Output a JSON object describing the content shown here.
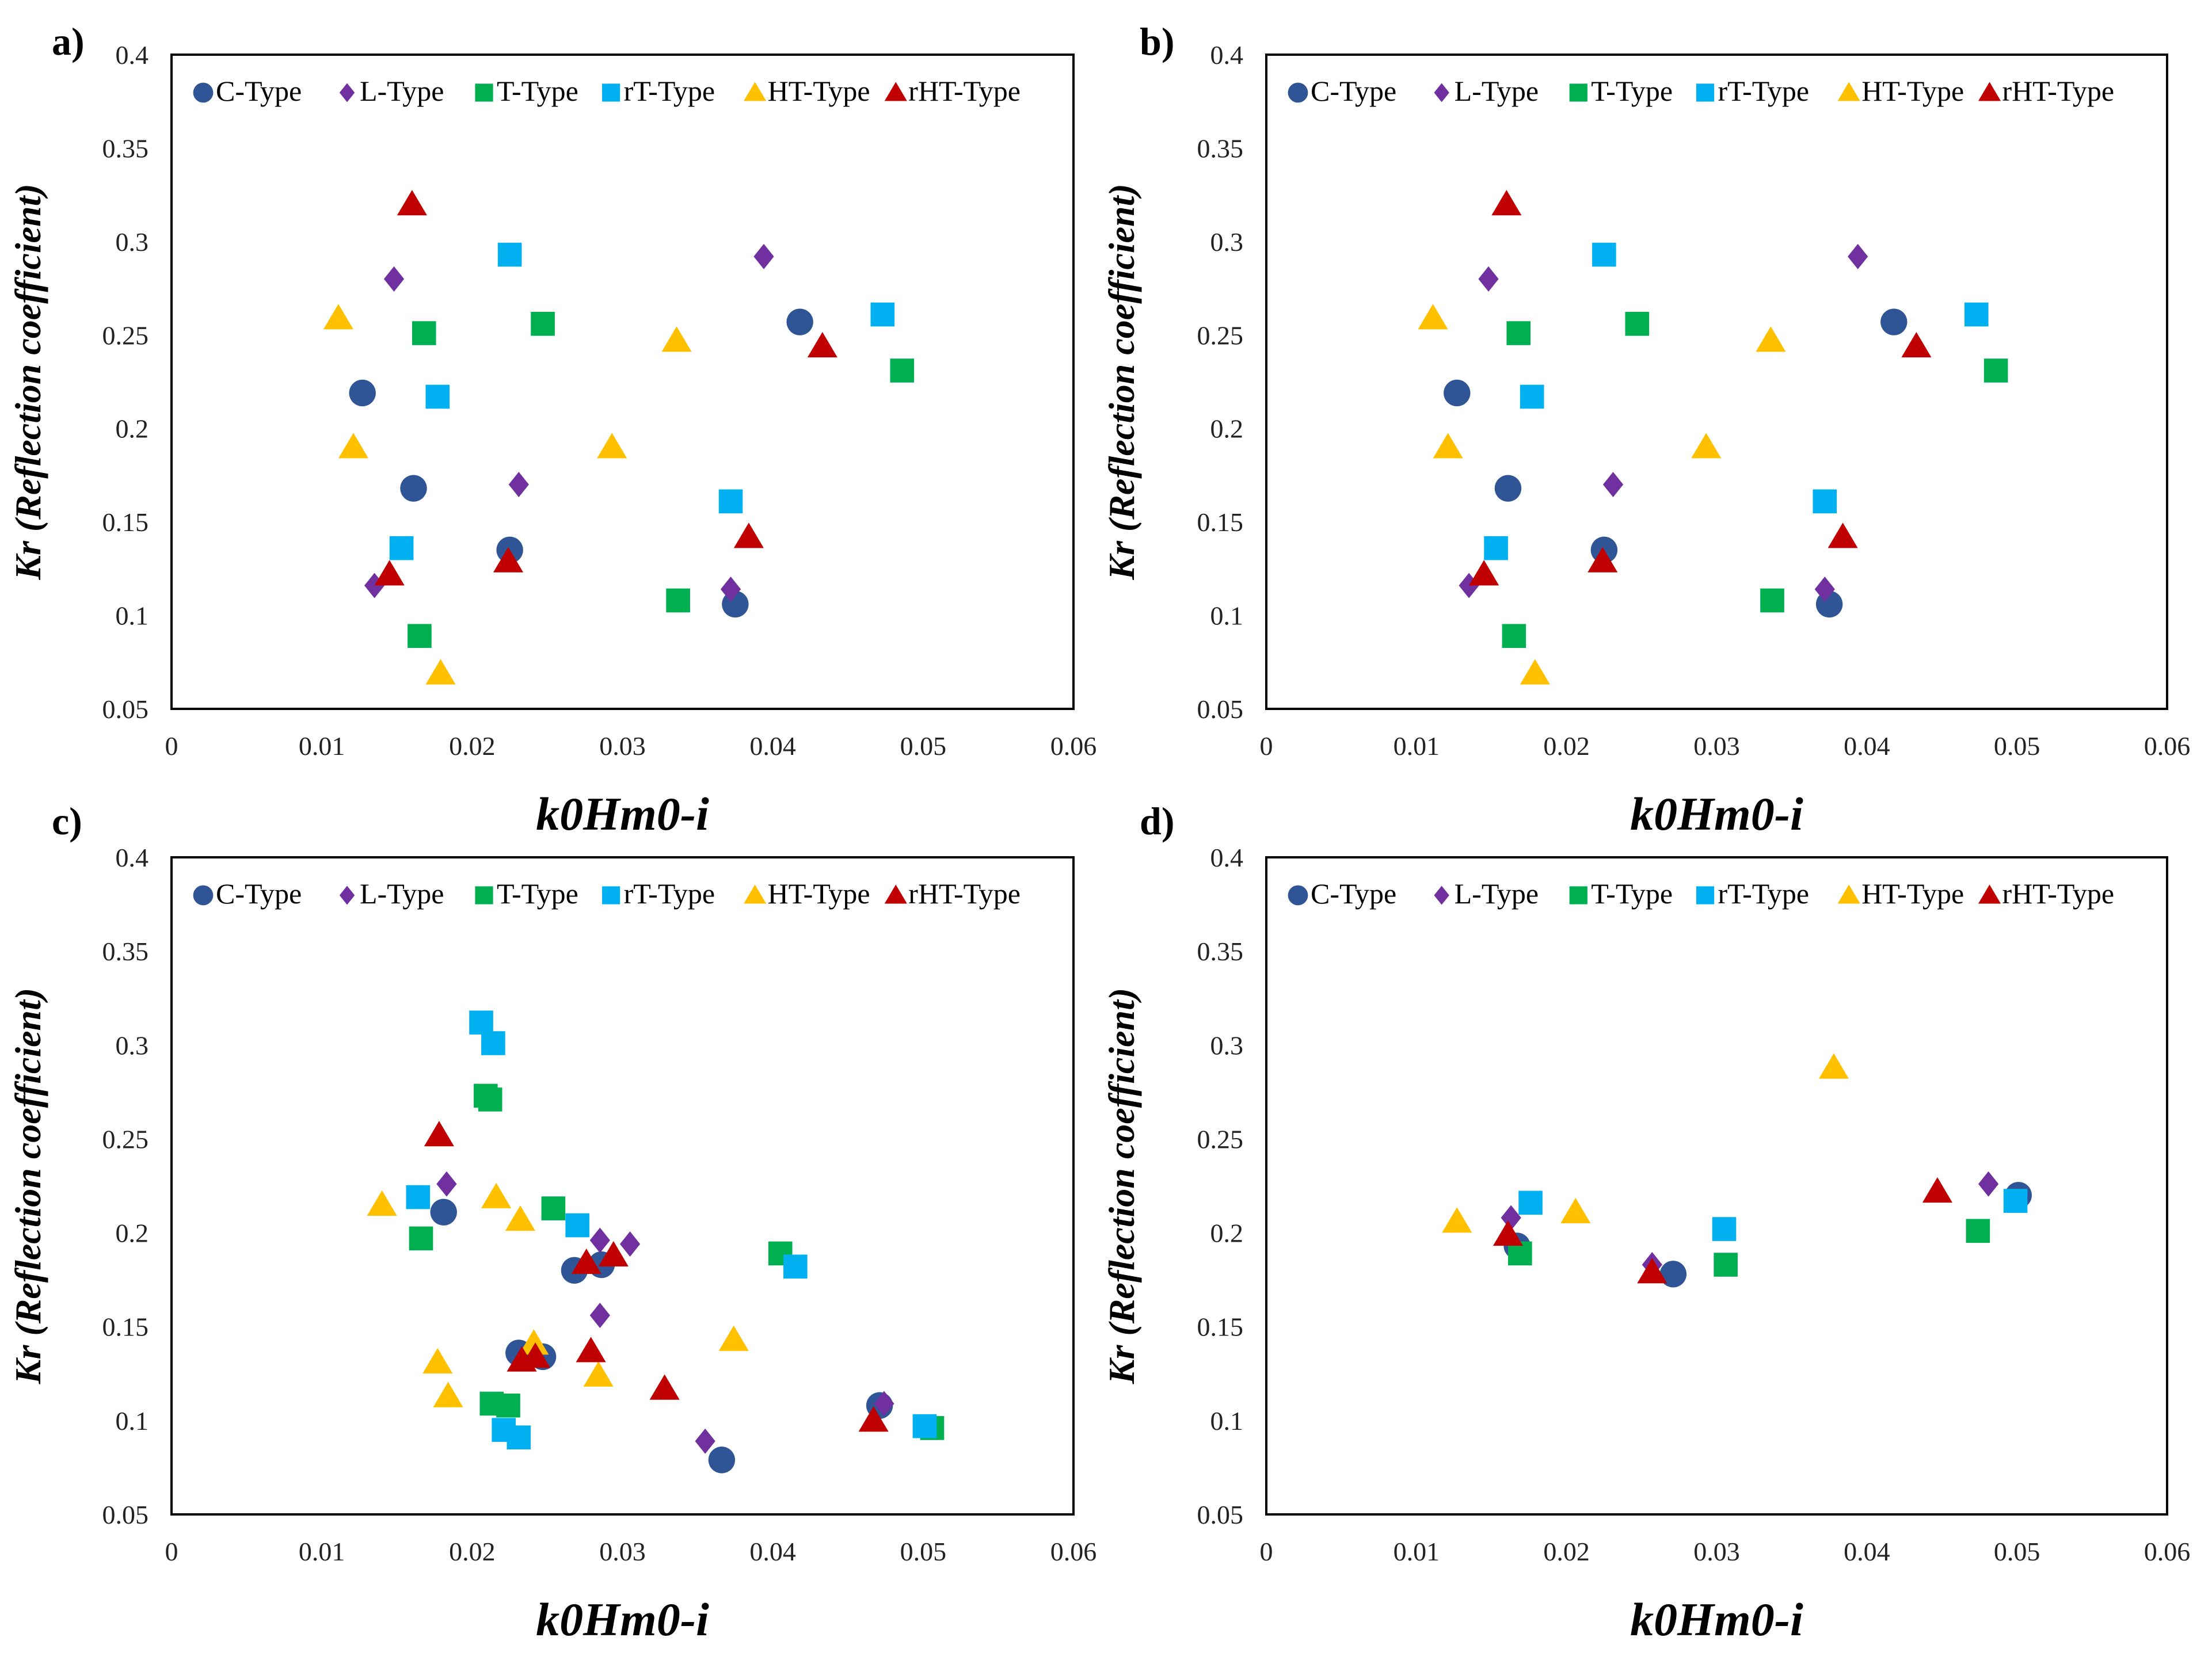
{
  "figure": {
    "colors": {
      "C-Type": "#2F5597",
      "L-Type": "#7030A0",
      "T-Type": "#00B050",
      "rT-Type": "#00B0F0",
      "HT-Type": "#FFC000",
      "rHT-Type": "#C00000"
    },
    "markers": {
      "C-Type": "circle",
      "L-Type": "diamond",
      "T-Type": "square",
      "rT-Type": "square",
      "HT-Type": "triangle",
      "rHT-Type": "triangle"
    }
  },
  "chart_data": [
    {
      "panel": "a)",
      "type": "scatter",
      "xlabel": "k0Hm0-i",
      "ylabel": "Kr (Reflection coefficient)",
      "xlim": [
        0,
        0.06
      ],
      "ylim": [
        0.05,
        0.4
      ],
      "xticks": [
        "0",
        "0.01",
        "0.02",
        "0.03",
        "0.04",
        "0.05",
        "0.06"
      ],
      "yticks": [
        "0.05",
        "0.1",
        "0.15",
        "0.2",
        "0.25",
        "0.3",
        "0.35",
        "0.4"
      ],
      "legend": [
        "C-Type",
        "L-Type",
        "T-Type",
        "rT-Type",
        "HT-Type",
        "rHT-Type"
      ],
      "series": [
        {
          "name": "C-Type",
          "points": [
            [
              0.0127,
              0.219
            ],
            [
              0.0161,
              0.168
            ],
            [
              0.0225,
              0.135
            ],
            [
              0.0375,
              0.106
            ],
            [
              0.0418,
              0.257
            ]
          ]
        },
        {
          "name": "L-Type",
          "points": [
            [
              0.0135,
              0.116
            ],
            [
              0.0148,
              0.28
            ],
            [
              0.0231,
              0.17
            ],
            [
              0.0372,
              0.114
            ],
            [
              0.0394,
              0.292
            ]
          ]
        },
        {
          "name": "T-Type",
          "points": [
            [
              0.0165,
              0.089
            ],
            [
              0.0168,
              0.251
            ],
            [
              0.0247,
              0.256
            ],
            [
              0.0337,
              0.108
            ],
            [
              0.0486,
              0.231
            ]
          ]
        },
        {
          "name": "rT-Type",
          "points": [
            [
              0.0153,
              0.136
            ],
            [
              0.0177,
              0.217
            ],
            [
              0.0225,
              0.293
            ],
            [
              0.0372,
              0.161
            ],
            [
              0.0473,
              0.261
            ]
          ]
        },
        {
          "name": "HT-Type",
          "points": [
            [
              0.0111,
              0.259
            ],
            [
              0.0121,
              0.19
            ],
            [
              0.0179,
              0.069
            ],
            [
              0.0293,
              0.19
            ],
            [
              0.0336,
              0.247
            ]
          ]
        },
        {
          "name": "rHT-Type",
          "points": [
            [
              0.0145,
              0.122
            ],
            [
              0.016,
              0.32
            ],
            [
              0.0224,
              0.129
            ],
            [
              0.0384,
              0.142
            ],
            [
              0.0433,
              0.244
            ]
          ]
        }
      ]
    },
    {
      "panel": "b)",
      "type": "scatter",
      "xlabel": "k0Hm0-i",
      "ylabel": "Kr (Reflection coefficient)",
      "xlim": [
        0,
        0.06
      ],
      "ylim": [
        0.05,
        0.4
      ],
      "xticks": [
        "0",
        "0.01",
        "0.02",
        "0.03",
        "0.04",
        "0.05",
        "0.06"
      ],
      "yticks": [
        "0.05",
        "0.1",
        "0.15",
        "0.2",
        "0.25",
        "0.3",
        "0.35",
        "0.4"
      ],
      "legend": [
        "C-Type",
        "L-Type",
        "T-Type",
        "rT-Type",
        "HT-Type",
        "rHT-Type"
      ],
      "series": [
        {
          "name": "C-Type",
          "points": [
            [
              0.0127,
              0.219
            ],
            [
              0.0161,
              0.168
            ],
            [
              0.0225,
              0.135
            ],
            [
              0.0375,
              0.106
            ],
            [
              0.0418,
              0.257
            ]
          ]
        },
        {
          "name": "L-Type",
          "points": [
            [
              0.0135,
              0.116
            ],
            [
              0.0148,
              0.28
            ],
            [
              0.0231,
              0.17
            ],
            [
              0.0372,
              0.114
            ],
            [
              0.0394,
              0.292
            ]
          ]
        },
        {
          "name": "T-Type",
          "points": [
            [
              0.0165,
              0.089
            ],
            [
              0.0168,
              0.251
            ],
            [
              0.0247,
              0.256
            ],
            [
              0.0337,
              0.108
            ],
            [
              0.0486,
              0.231
            ]
          ]
        },
        {
          "name": "rT-Type",
          "points": [
            [
              0.0153,
              0.136
            ],
            [
              0.0177,
              0.217
            ],
            [
              0.0225,
              0.293
            ],
            [
              0.0372,
              0.161
            ],
            [
              0.0473,
              0.261
            ]
          ]
        },
        {
          "name": "HT-Type",
          "points": [
            [
              0.0111,
              0.259
            ],
            [
              0.0121,
              0.19
            ],
            [
              0.0179,
              0.069
            ],
            [
              0.0293,
              0.19
            ],
            [
              0.0336,
              0.247
            ]
          ]
        },
        {
          "name": "rHT-Type",
          "points": [
            [
              0.0145,
              0.122
            ],
            [
              0.016,
              0.32
            ],
            [
              0.0224,
              0.129
            ],
            [
              0.0384,
              0.142
            ],
            [
              0.0433,
              0.244
            ]
          ]
        }
      ]
    },
    {
      "panel": "c)",
      "type": "scatter",
      "xlabel": "k0Hm0-i",
      "ylabel": "Kr (Reflection coefficient)",
      "xlim": [
        0,
        0.06
      ],
      "ylim": [
        0.05,
        0.4
      ],
      "xticks": [
        "0",
        "0.01",
        "0.02",
        "0.03",
        "0.04",
        "0.05",
        "0.06"
      ],
      "yticks": [
        "0.05",
        "0.1",
        "0.15",
        "0.2",
        "0.25",
        "0.3",
        "0.35",
        "0.4"
      ],
      "legend": [
        "C-Type",
        "L-Type",
        "T-Type",
        "rT-Type",
        "HT-Type",
        "rHT-Type"
      ],
      "series": [
        {
          "name": "C-Type",
          "points": [
            [
              0.0181,
              0.211
            ],
            [
              0.0231,
              0.136
            ],
            [
              0.0247,
              0.134
            ],
            [
              0.0268,
              0.18
            ],
            [
              0.0286,
              0.183
            ],
            [
              0.0366,
              0.079
            ],
            [
              0.0471,
              0.108
            ]
          ]
        },
        {
          "name": "L-Type",
          "points": [
            [
              0.0183,
              0.226
            ],
            [
              0.0285,
              0.196
            ],
            [
              0.0285,
              0.156
            ],
            [
              0.0305,
              0.194
            ],
            [
              0.0355,
              0.089
            ],
            [
              0.0474,
              0.109
            ]
          ]
        },
        {
          "name": "T-Type",
          "points": [
            [
              0.0166,
              0.197
            ],
            [
              0.0209,
              0.273
            ],
            [
              0.0212,
              0.271
            ],
            [
              0.0213,
              0.109
            ],
            [
              0.0224,
              0.108
            ],
            [
              0.0254,
              0.213
            ],
            [
              0.0405,
              0.189
            ],
            [
              0.0506,
              0.096
            ]
          ]
        },
        {
          "name": "rT-Type",
          "points": [
            [
              0.0164,
              0.219
            ],
            [
              0.0206,
              0.312
            ],
            [
              0.0214,
              0.301
            ],
            [
              0.0221,
              0.095
            ],
            [
              0.0231,
              0.091
            ],
            [
              0.027,
              0.204
            ],
            [
              0.0415,
              0.182
            ],
            [
              0.0501,
              0.097
            ]
          ]
        },
        {
          "name": "HT-Type",
          "points": [
            [
              0.014,
              0.215
            ],
            [
              0.0177,
              0.131
            ],
            [
              0.0184,
              0.113
            ],
            [
              0.0216,
              0.219
            ],
            [
              0.0232,
              0.207
            ],
            [
              0.0241,
              0.141
            ],
            [
              0.0284,
              0.124
            ],
            [
              0.0374,
              0.143
            ]
          ]
        },
        {
          "name": "rHT-Type",
          "points": [
            [
              0.0178,
              0.252
            ],
            [
              0.0233,
              0.132
            ],
            [
              0.0242,
              0.134
            ],
            [
              0.0276,
              0.184
            ],
            [
              0.0279,
              0.137
            ],
            [
              0.0294,
              0.188
            ],
            [
              0.0328,
              0.117
            ],
            [
              0.0467,
              0.1
            ]
          ]
        }
      ]
    },
    {
      "panel": "d)",
      "type": "scatter",
      "xlabel": "k0Hm0-i",
      "ylabel": "Kr (Reflection coefficient)",
      "xlim": [
        0,
        0.06
      ],
      "ylim": [
        0.05,
        0.4
      ],
      "xticks": [
        "0",
        "0.01",
        "0.02",
        "0.03",
        "0.04",
        "0.05",
        "0.06"
      ],
      "yticks": [
        "0.05",
        "0.1",
        "0.15",
        "0.2",
        "0.25",
        "0.3",
        "0.35",
        "0.4"
      ],
      "legend": [
        "C-Type",
        "L-Type",
        "T-Type",
        "rT-Type",
        "HT-Type",
        "rHT-Type"
      ],
      "series": [
        {
          "name": "C-Type",
          "points": [
            [
              0.0167,
              0.193
            ],
            [
              0.0271,
              0.178
            ],
            [
              0.0501,
              0.22
            ]
          ]
        },
        {
          "name": "L-Type",
          "points": [
            [
              0.0163,
              0.208
            ],
            [
              0.0257,
              0.183
            ],
            [
              0.0481,
              0.226
            ]
          ]
        },
        {
          "name": "T-Type",
          "points": [
            [
              0.0169,
              0.189
            ],
            [
              0.0306,
              0.183
            ],
            [
              0.0474,
              0.201
            ]
          ]
        },
        {
          "name": "rT-Type",
          "points": [
            [
              0.0176,
              0.216
            ],
            [
              0.0305,
              0.202
            ],
            [
              0.0499,
              0.217
            ]
          ]
        },
        {
          "name": "HT-Type",
          "points": [
            [
              0.0127,
              0.206
            ],
            [
              0.0206,
              0.211
            ],
            [
              0.0378,
              0.288
            ]
          ]
        },
        {
          "name": "rHT-Type",
          "points": [
            [
              0.0161,
              0.199
            ],
            [
              0.0257,
              0.179
            ],
            [
              0.0447,
              0.222
            ]
          ]
        }
      ]
    }
  ]
}
